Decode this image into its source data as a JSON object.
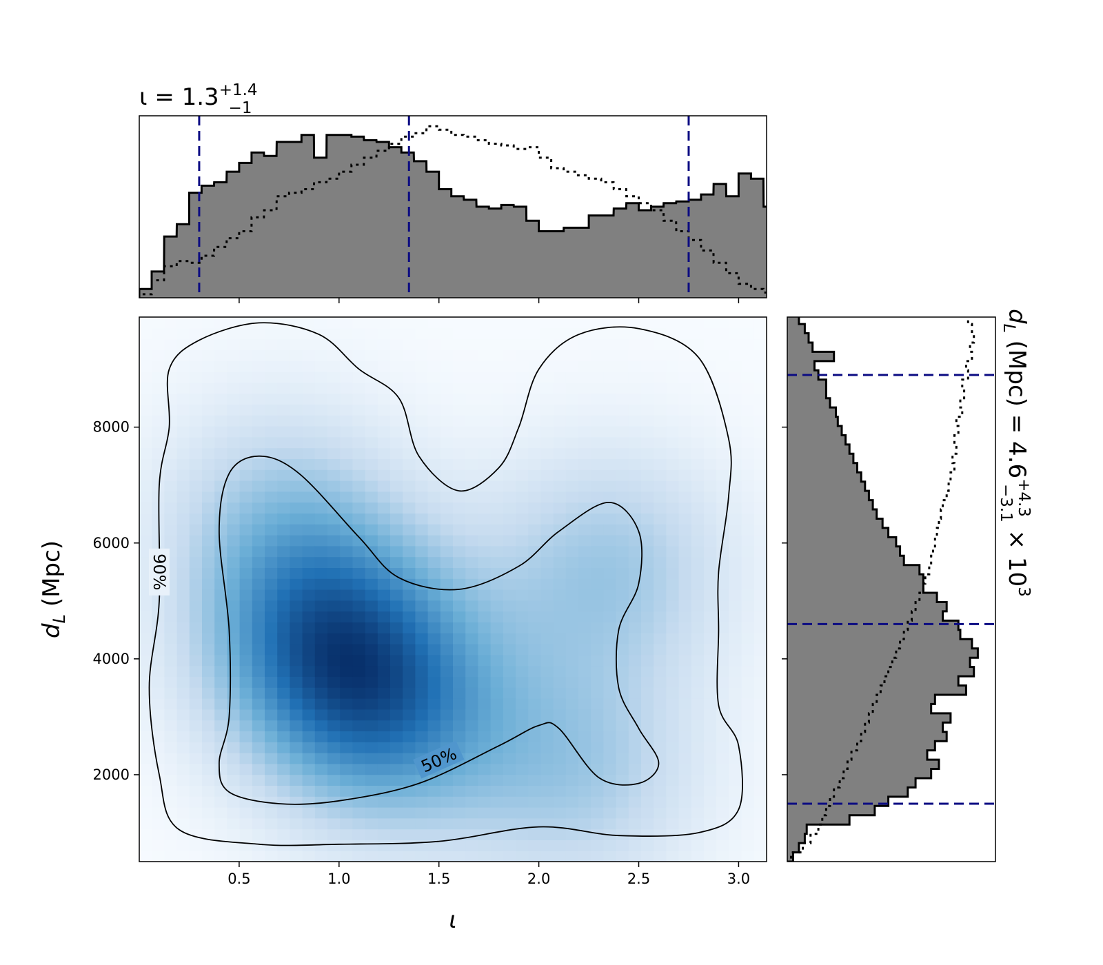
{
  "chart_data": [
    {
      "type": "heatmap",
      "panel": "joint",
      "xlabel_sym": "ι",
      "ylabel_sym": "d",
      "ylabel_sub": "L",
      "ylabel_unit": " (Mpc)",
      "xlim": [
        0.0,
        3.14
      ],
      "ylim": [
        500,
        9900
      ],
      "xticks": [
        0.5,
        1.0,
        1.5,
        2.0,
        2.5,
        3.0
      ],
      "xtick_labels": [
        "0.5",
        "1.0",
        "1.5",
        "2.0",
        "2.5",
        "3.0"
      ],
      "yticks": [
        2000,
        4000,
        6000,
        8000
      ],
      "ytick_labels": [
        "2000",
        "4000",
        "6000",
        "8000"
      ],
      "colormap": "Blues",
      "density_peaks": [
        {
          "x": 0.95,
          "y": 4300,
          "weight": 1.0
        },
        {
          "x": 1.25,
          "y": 3000,
          "weight": 0.75
        },
        {
          "x": 2.35,
          "y": 5600,
          "weight": 0.55
        },
        {
          "x": 2.2,
          "y": 2000,
          "weight": 0.5
        },
        {
          "x": 0.7,
          "y": 6500,
          "weight": 0.45
        }
      ],
      "contour_levels": [
        "50%",
        "90%"
      ],
      "contour_50": [
        [
          0.4,
          2200
        ],
        [
          0.45,
          1700
        ],
        [
          0.7,
          1500
        ],
        [
          1.0,
          1550
        ],
        [
          1.4,
          1850
        ],
        [
          1.8,
          2500
        ],
        [
          2.0,
          2850
        ],
        [
          2.1,
          2800
        ],
        [
          2.3,
          1950
        ],
        [
          2.5,
          1850
        ],
        [
          2.6,
          2200
        ],
        [
          2.5,
          2800
        ],
        [
          2.4,
          3500
        ],
        [
          2.4,
          4500
        ],
        [
          2.5,
          5300
        ],
        [
          2.5,
          6200
        ],
        [
          2.35,
          6700
        ],
        [
          2.1,
          6200
        ],
        [
          1.9,
          5600
        ],
        [
          1.6,
          5200
        ],
        [
          1.3,
          5400
        ],
        [
          1.1,
          6100
        ],
        [
          0.8,
          7200
        ],
        [
          0.6,
          7500
        ],
        [
          0.45,
          7200
        ],
        [
          0.4,
          6200
        ],
        [
          0.45,
          4500
        ],
        [
          0.45,
          3000
        ]
      ],
      "contour_90": [
        [
          0.1,
          2000
        ],
        [
          0.2,
          1050
        ],
        [
          0.6,
          800
        ],
        [
          1.0,
          800
        ],
        [
          1.5,
          850
        ],
        [
          2.0,
          1100
        ],
        [
          2.4,
          950
        ],
        [
          2.8,
          1000
        ],
        [
          3.0,
          1400
        ],
        [
          3.0,
          2500
        ],
        [
          2.9,
          3200
        ],
        [
          2.9,
          4500
        ],
        [
          2.9,
          5500
        ],
        [
          2.95,
          6800
        ],
        [
          2.95,
          7800
        ],
        [
          2.8,
          9200
        ],
        [
          2.5,
          9700
        ],
        [
          2.2,
          9600
        ],
        [
          2.0,
          9000
        ],
        [
          1.9,
          8000
        ],
        [
          1.8,
          7300
        ],
        [
          1.6,
          6900
        ],
        [
          1.4,
          7500
        ],
        [
          1.3,
          8500
        ],
        [
          1.1,
          9000
        ],
        [
          0.9,
          9600
        ],
        [
          0.6,
          9800
        ],
        [
          0.3,
          9500
        ],
        [
          0.15,
          9000
        ],
        [
          0.15,
          8000
        ],
        [
          0.1,
          7000
        ],
        [
          0.1,
          5000
        ],
        [
          0.05,
          3500
        ]
      ]
    },
    {
      "type": "bar",
      "panel": "marginal-x",
      "title_var": "ι = 1.3",
      "title_sup": "+1.4",
      "title_sub": "−1",
      "x": [
        0.0,
        0.062,
        0.125,
        0.188,
        0.25,
        0.312,
        0.375,
        0.438,
        0.5,
        0.562,
        0.625,
        0.688,
        0.75,
        0.812,
        0.875,
        0.938,
        1.0,
        1.062,
        1.125,
        1.188,
        1.25,
        1.312,
        1.375,
        1.438,
        1.5,
        1.562,
        1.625,
        1.688,
        1.75,
        1.812,
        1.875,
        1.938,
        2.0,
        2.062,
        2.125,
        2.188,
        2.25,
        2.312,
        2.375,
        2.438,
        2.5,
        2.562,
        2.625,
        2.688,
        2.75,
        2.812,
        2.875,
        2.938,
        3.0,
        3.062,
        3.125
      ],
      "values": [
        0.05,
        0.15,
        0.35,
        0.42,
        0.6,
        0.64,
        0.66,
        0.72,
        0.77,
        0.83,
        0.81,
        0.89,
        0.89,
        0.93,
        0.8,
        0.93,
        0.93,
        0.92,
        0.9,
        0.89,
        0.86,
        0.83,
        0.78,
        0.72,
        0.62,
        0.58,
        0.56,
        0.52,
        0.51,
        0.53,
        0.52,
        0.44,
        0.38,
        0.38,
        0.4,
        0.4,
        0.47,
        0.47,
        0.51,
        0.54,
        0.5,
        0.52,
        0.54,
        0.55,
        0.56,
        0.59,
        0.65,
        0.58,
        0.71,
        0.68,
        0.52
      ],
      "reference_values": [
        0.02,
        0.1,
        0.18,
        0.21,
        0.2,
        0.24,
        0.29,
        0.34,
        0.38,
        0.46,
        0.5,
        0.58,
        0.6,
        0.62,
        0.66,
        0.68,
        0.72,
        0.76,
        0.8,
        0.84,
        0.88,
        0.92,
        0.94,
        0.98,
        0.96,
        0.93,
        0.92,
        0.9,
        0.88,
        0.87,
        0.85,
        0.86,
        0.8,
        0.74,
        0.72,
        0.7,
        0.68,
        0.66,
        0.62,
        0.58,
        0.54,
        0.5,
        0.44,
        0.38,
        0.33,
        0.27,
        0.2,
        0.14,
        0.08,
        0.05,
        0.03
      ],
      "quantiles": [
        0.3,
        1.35,
        2.75
      ],
      "quantile_color": "#0b0b82",
      "fill_color": "#808080"
    },
    {
      "type": "bar",
      "panel": "marginal-y",
      "orientation": "horizontal",
      "label_var": "d",
      "label_sub": "L",
      "label_text": " (Mpc) = 4.6",
      "label_sup": "+4.3",
      "label_sub2": "−3.1",
      "label_tail": " × 10",
      "label_exp": "3",
      "y": [
        500,
        660,
        820,
        980,
        1140,
        1300,
        1460,
        1620,
        1780,
        1940,
        2100,
        2260,
        2420,
        2580,
        2740,
        2900,
        3060,
        3220,
        3380,
        3540,
        3700,
        3860,
        4020,
        4180,
        4340,
        4500,
        4660,
        4820,
        4980,
        5140,
        5300,
        5460,
        5620,
        5780,
        5940,
        6100,
        6260,
        6420,
        6580,
        6740,
        6900,
        7060,
        7220,
        7380,
        7540,
        7700,
        7860,
        8020,
        8180,
        8340,
        8500,
        8660,
        8820,
        8980,
        9140,
        9300,
        9460,
        9620,
        9780
      ],
      "values": [
        0.03,
        0.06,
        0.09,
        0.1,
        0.32,
        0.45,
        0.52,
        0.62,
        0.66,
        0.74,
        0.78,
        0.72,
        0.76,
        0.82,
        0.8,
        0.84,
        0.74,
        0.76,
        0.92,
        0.88,
        0.96,
        0.94,
        0.98,
        0.95,
        0.89,
        0.88,
        0.8,
        0.82,
        0.77,
        0.7,
        0.7,
        0.68,
        0.6,
        0.58,
        0.56,
        0.52,
        0.49,
        0.46,
        0.44,
        0.42,
        0.4,
        0.38,
        0.36,
        0.34,
        0.32,
        0.3,
        0.28,
        0.26,
        0.25,
        0.22,
        0.2,
        0.2,
        0.16,
        0.14,
        0.24,
        0.13,
        0.11,
        0.09,
        0.06
      ],
      "reference_values": [
        0.02,
        0.08,
        0.12,
        0.16,
        0.18,
        0.2,
        0.22,
        0.24,
        0.27,
        0.29,
        0.31,
        0.33,
        0.36,
        0.38,
        0.4,
        0.42,
        0.44,
        0.46,
        0.48,
        0.5,
        0.52,
        0.54,
        0.56,
        0.58,
        0.6,
        0.62,
        0.64,
        0.66,
        0.68,
        0.7,
        0.71,
        0.73,
        0.74,
        0.75,
        0.76,
        0.77,
        0.78,
        0.79,
        0.8,
        0.82,
        0.83,
        0.84,
        0.86,
        0.85,
        0.87,
        0.86,
        0.88,
        0.87,
        0.9,
        0.89,
        0.91,
        0.9,
        0.93,
        0.92,
        0.95,
        0.94,
        0.96,
        0.95,
        0.93
      ],
      "quantiles": [
        1500,
        4600,
        8900
      ],
      "quantile_color": "#0b0b82",
      "fill_color": "#808080"
    }
  ]
}
